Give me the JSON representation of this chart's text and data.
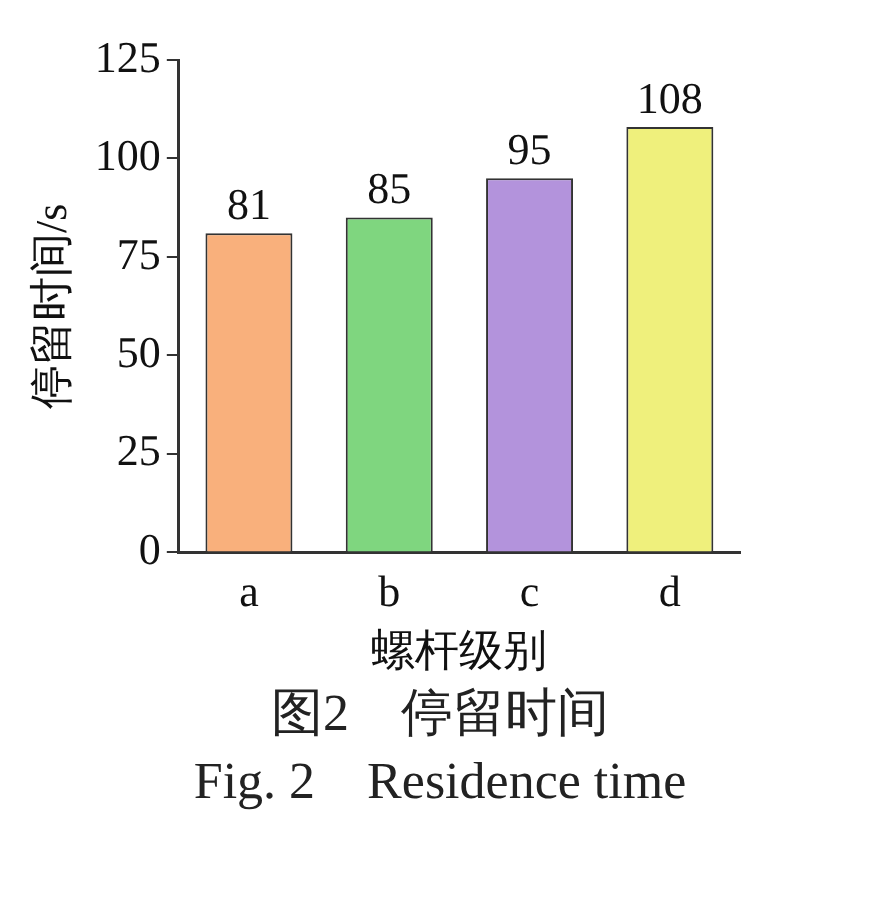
{
  "chart_data": {
    "type": "bar",
    "xlabel": "螺杆级别",
    "ylabel": "停留时间/s",
    "categories": [
      "a",
      "b",
      "c",
      "d"
    ],
    "values": [
      81,
      85,
      95,
      108
    ],
    "colors": [
      "#f9b07c",
      "#7fd67f",
      "#b393dc",
      "#eff07c"
    ],
    "ylim": [
      0,
      125
    ],
    "yticks": [
      0,
      25,
      50,
      75,
      100,
      125
    ],
    "grid": false,
    "legend": false,
    "data_labels": true,
    "annotations": [
      "图2　停留时间",
      "Fig. 2　Residence time"
    ]
  }
}
